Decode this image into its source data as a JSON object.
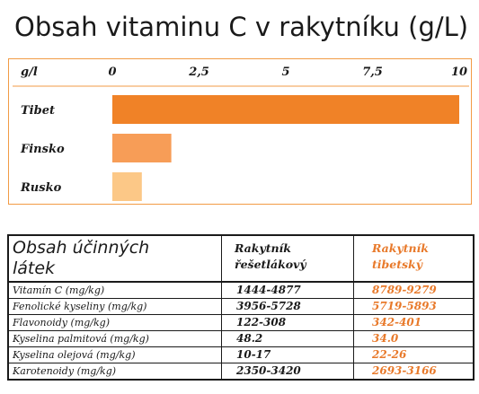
{
  "title": "Obsah vitaminu C v rakytníku (g/L)",
  "chart_data": {
    "type": "bar",
    "orientation": "horizontal",
    "unit_label": "g/l",
    "categories": [
      "Tibet",
      "Finsko",
      "Rusko"
    ],
    "values": [
      10.0,
      1.7,
      0.85
    ],
    "colors": [
      "#f08227",
      "#f79d57",
      "#fcc887"
    ],
    "xlim": [
      0,
      10
    ],
    "ticks": [
      "0",
      "2,5",
      "5",
      "7,5",
      "10"
    ],
    "tick_values": [
      0,
      2.5,
      5,
      7.5,
      10
    ]
  },
  "table": {
    "header": {
      "col1_line1": "Obsah účinných",
      "col1_line2": "látek",
      "col2_line1": "Rakytník",
      "col2_line2": "řešetlákový",
      "col3_line1": "Rakytník",
      "col3_line2": "tibetský"
    },
    "rows": [
      {
        "label": "Vitamín C (mg/kg)",
        "a": "1444-4877",
        "b": "8789-9279"
      },
      {
        "label": "Fenolické kyseliny (mg/kg)",
        "a": "3956-5728",
        "b": "5719-5893"
      },
      {
        "label": "Flavonoidy (mg/kg)",
        "a": "122-308",
        "b": "342-401"
      },
      {
        "label": "Kyselina palmitová (mg/kg)",
        "a": "48.2",
        "b": "34.0"
      },
      {
        "label": "Kyselina olejová (mg/kg)",
        "a": "10-17",
        "b": "22-26"
      },
      {
        "label": "Karotenoidy (mg/kg)",
        "a": "2350-3420",
        "b": "2693-3166"
      }
    ]
  },
  "colors": {
    "accent": "#e8792a",
    "border": "#f29b45"
  }
}
